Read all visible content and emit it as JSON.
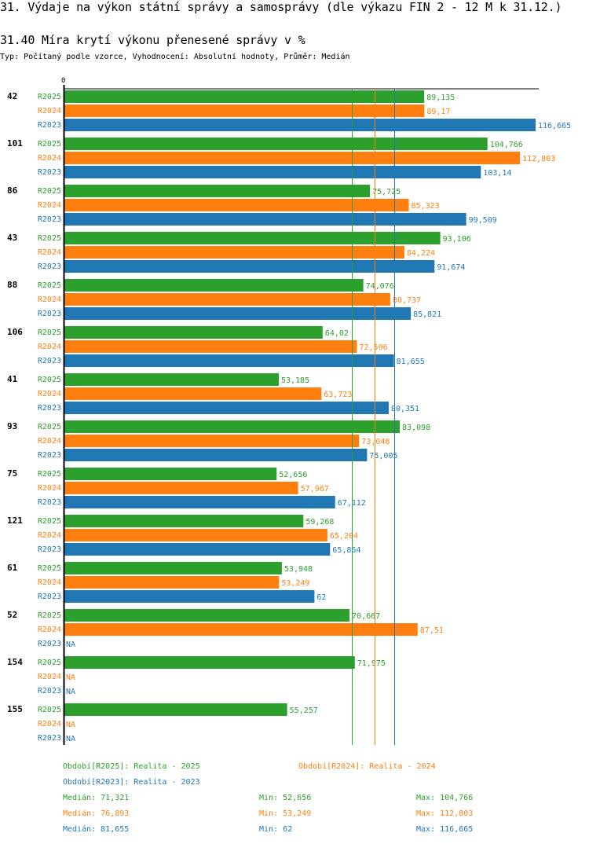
{
  "header": {
    "title": "31. Výdaje na výkon státní správy a samosprávy (dle výkazu FIN 2 - 12 M k 31.12.)",
    "subtitle": "31.40 Míra krytí výkonu přenesené správy v %",
    "meta": "Typ: Počítaný podle vzorce, Vyhodnocení: Absolutní hodnoty, Průměr: Medián"
  },
  "colors": {
    "R2025": "#2ca02c",
    "R2024": "#ff7f0e",
    "R2023": "#1f77b4"
  },
  "chart_data": {
    "type": "bar",
    "orientation": "horizontal",
    "title": "31.40 Míra krytí výkonu přenesené správy v %",
    "xlabel": "",
    "ylabel": "",
    "xlim": [
      0,
      116.665
    ],
    "x_tick_labels": [
      "0"
    ],
    "grid": false,
    "categories": [
      "42",
      "101",
      "86",
      "43",
      "88",
      "106",
      "41",
      "93",
      "75",
      "121",
      "61",
      "52",
      "154",
      "155"
    ],
    "series": [
      {
        "name": "R2025",
        "values": [
          89.135,
          104.766,
          75.725,
          93.106,
          74.076,
          64.02,
          53.185,
          83.098,
          52.656,
          59.268,
          53.948,
          70.667,
          71.975,
          55.257
        ]
      },
      {
        "name": "R2024",
        "values": [
          89.17,
          112.803,
          85.323,
          84.224,
          80.737,
          72.506,
          63.723,
          73.048,
          57.967,
          65.204,
          53.249,
          87.51,
          null,
          null
        ]
      },
      {
        "name": "R2023",
        "values": [
          116.665,
          103.14,
          99.509,
          91.674,
          85.821,
          81.655,
          80.351,
          75.005,
          67.112,
          65.864,
          62,
          null,
          null,
          null
        ]
      }
    ],
    "value_labels": {
      "R2025": [
        "89,135",
        "104,766",
        "75,725",
        "93,106",
        "74,076",
        "64,02",
        "53,185",
        "83,098",
        "52,656",
        "59,268",
        "53,948",
        "70,667",
        "71,975",
        "55,257"
      ],
      "R2024": [
        "89,17",
        "112,803",
        "85,323",
        "84,224",
        "80,737",
        "72,506",
        "63,723",
        "73,048",
        "57,967",
        "65,204",
        "53,249",
        "87,51",
        "NA",
        "NA"
      ],
      "R2023": [
        "116,665",
        "103,14",
        "99,509",
        "91,674",
        "85,821",
        "81,655",
        "80,351",
        "75,005",
        "67,112",
        "65,864",
        "62",
        "NA",
        "NA",
        "NA"
      ]
    },
    "median_lines": [
      {
        "series": "R2025",
        "value": 71.321
      },
      {
        "series": "R2024",
        "value": 76.893
      },
      {
        "series": "R2023",
        "value": 81.655
      }
    ],
    "legend": [
      {
        "series": "R2025",
        "label": "Období[R2025]: Realita - 2025"
      },
      {
        "series": "R2024",
        "label": "Období[R2024]: Realita - 2024"
      },
      {
        "series": "R2023",
        "label": "Období[R2023]: Realita - 2023"
      }
    ],
    "legend_position": "bottom"
  },
  "stats": [
    {
      "series": "R2025",
      "median": "Medián: 71,321",
      "min": "Min: 52,656",
      "max": "Max: 104,766"
    },
    {
      "series": "R2024",
      "median": "Medián: 76,893",
      "min": "Min: 53,249",
      "max": "Max: 112,803"
    },
    {
      "series": "R2023",
      "median": "Medián: 81,655",
      "min": "Min: 62",
      "max": "Max: 116,665"
    }
  ]
}
